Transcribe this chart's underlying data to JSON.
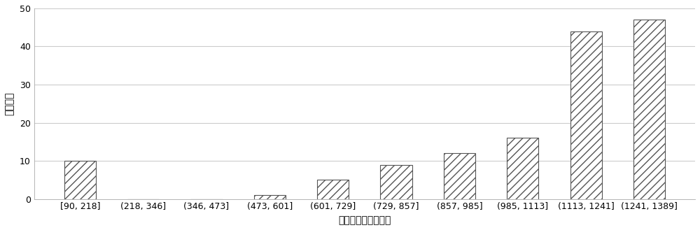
{
  "categories": [
    "[90, 218]",
    "(218, 346]",
    "(346, 473]",
    "(473, 601]",
    "(601, 729]",
    "(729, 857]",
    "(857, 985]",
    "(985, 1113]",
    "(1113, 1241]",
    "(1241, 1389]"
  ],
  "values": [
    10,
    0,
    0,
    1,
    5,
    9,
    12,
    16,
    44,
    47
  ],
  "xlabel": "量维波动的量级范围",
  "ylabel": "波动频次",
  "ylim": [
    0,
    50
  ],
  "yticks": [
    0,
    10,
    20,
    30,
    40,
    50
  ],
  "bar_color": "#ffffff",
  "bar_edgecolor": "#555555",
  "hatch": "///",
  "background_color": "#ffffff",
  "grid_color": "#cccccc",
  "figsize": [
    10.0,
    3.29
  ],
  "dpi": 100,
  "bar_width": 0.5,
  "tick_fontsize": 9,
  "label_fontsize": 10
}
